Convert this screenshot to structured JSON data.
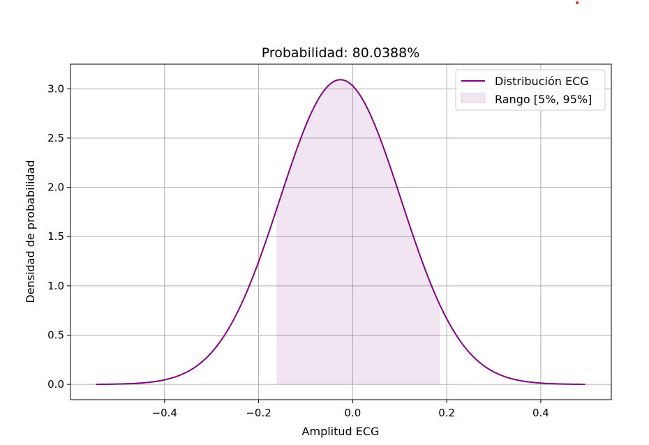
{
  "chart_data": {
    "type": "line",
    "title": "Probabilidad: 80.0388%",
    "xlabel": "Amplitud ECG",
    "ylabel": "Densidad de probabilidad",
    "xlim": [
      -0.6,
      0.55
    ],
    "ylim": [
      -0.155,
      3.25
    ],
    "grid": true,
    "legend_position": "top-right",
    "x_ticks": [
      -0.4,
      -0.2,
      0.0,
      0.2,
      0.4
    ],
    "x_tick_labels": [
      "−0.4",
      "−0.2",
      "0.0",
      "0.2",
      "0.4"
    ],
    "y_ticks": [
      0.0,
      0.5,
      1.0,
      1.5,
      2.0,
      2.5,
      3.0
    ],
    "y_tick_labels": [
      "0.0",
      "0.5",
      "1.0",
      "1.5",
      "2.0",
      "2.5",
      "3.0"
    ],
    "series": [
      {
        "name": "Distribución ECG",
        "kind": "normal-pdf",
        "mean": -0.026,
        "std": 0.129,
        "x_range": [
          -0.546,
          0.494
        ],
        "color": "#800080"
      }
    ],
    "shaded_region": {
      "name": "Rango [5%, 95%]",
      "x_range": [
        -0.162,
        0.186
      ],
      "color": "#800080",
      "opacity": 0.1
    }
  },
  "marker": {
    "color": "#e0202a"
  }
}
